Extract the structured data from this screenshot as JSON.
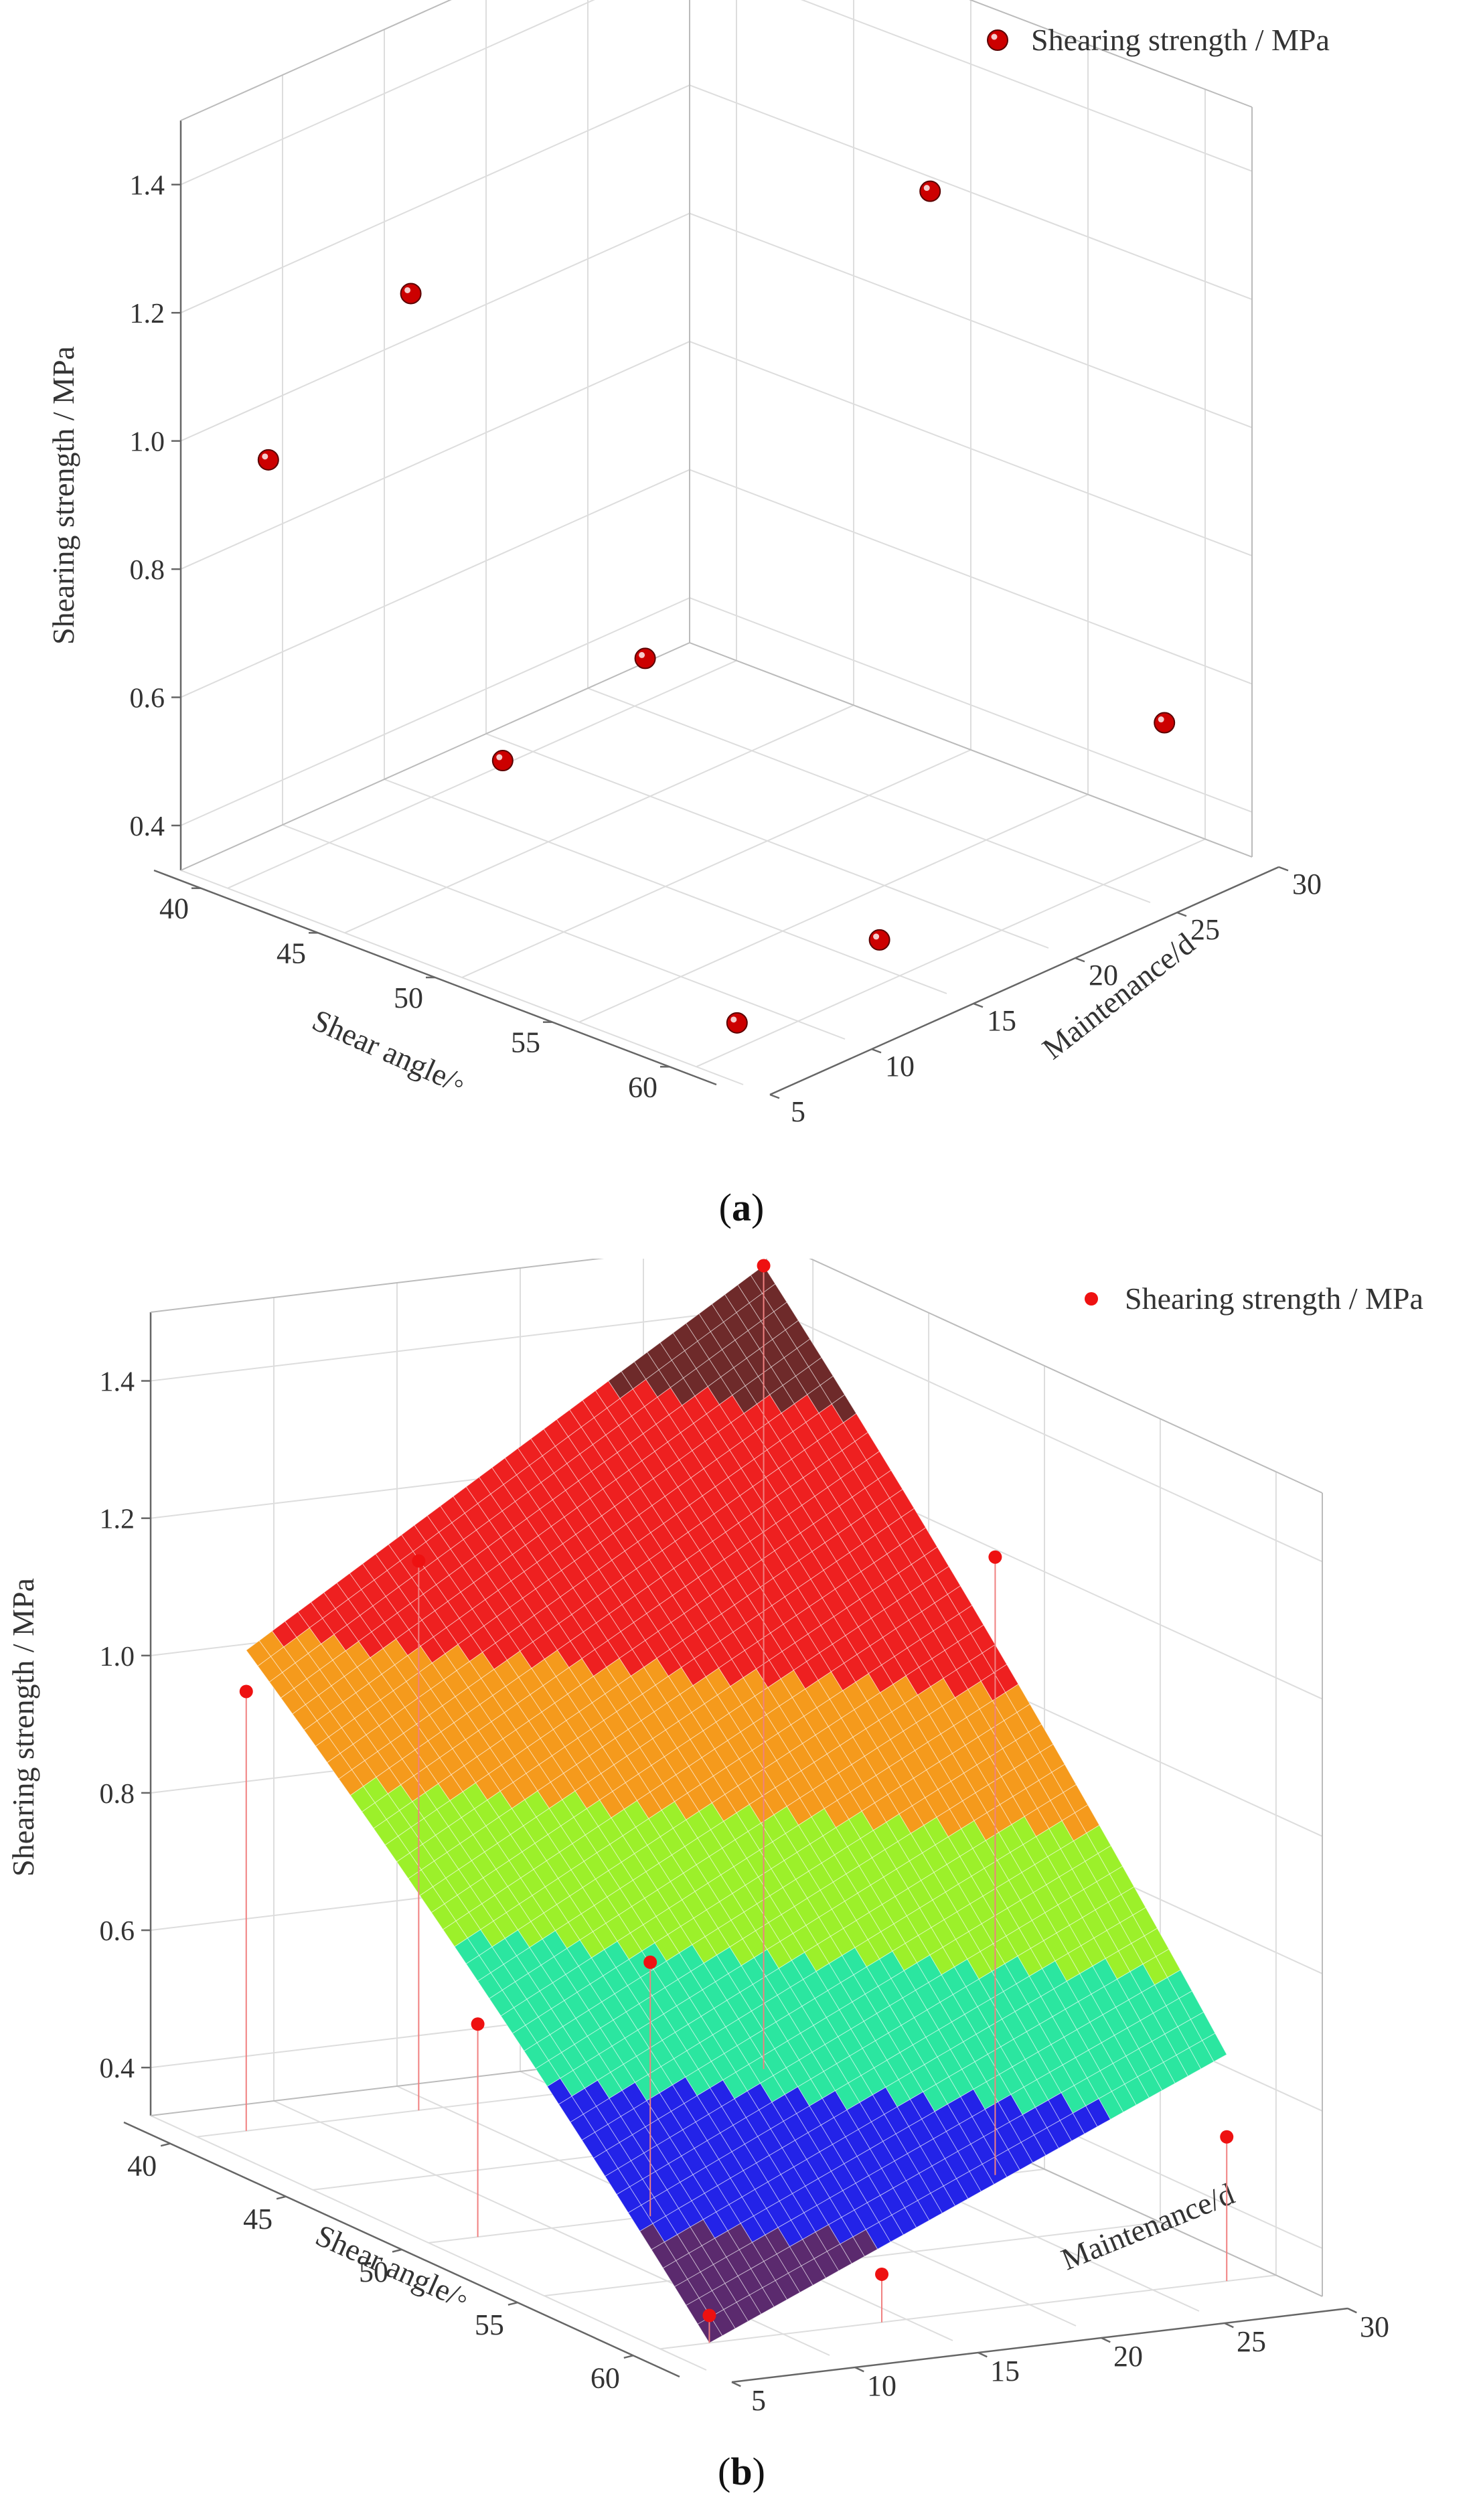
{
  "chart_data": [
    {
      "type": "scatter",
      "panel": "a",
      "caption_letter": "a",
      "zlabel": "Shearing strength / MPa",
      "xlabel": "Shear angle/◦",
      "ylabel": "Maintenance/d",
      "legend": {
        "label": "Shearing strength / MPa",
        "placement": "top-right"
      },
      "xlim": [
        38,
        62
      ],
      "ylim": [
        5,
        30
      ],
      "zlim": [
        0.33,
        1.5
      ],
      "xticks": [
        "40",
        "45",
        "50",
        "55",
        "60"
      ],
      "yticks": [
        "5",
        "10",
        "15",
        "20",
        "25",
        "30"
      ],
      "zticks": [
        "0.4",
        "0.6",
        "0.8",
        "1.0",
        "1.2",
        "1.4"
      ],
      "points": [
        {
          "x": 40,
          "y": 7,
          "z": 0.97
        },
        {
          "x": 40,
          "y": 14,
          "z": 1.13
        },
        {
          "x": 50,
          "y": 7,
          "z": 0.64
        },
        {
          "x": 40,
          "y": 28,
          "z": 1.5
        },
        {
          "x": 50,
          "y": 14,
          "z": 0.7
        },
        {
          "x": 50,
          "y": 28,
          "z": 1.23
        },
        {
          "x": 60,
          "y": 7,
          "z": 0.37
        },
        {
          "x": 60,
          "y": 14,
          "z": 0.4
        },
        {
          "x": 60,
          "y": 28,
          "z": 0.54
        }
      ],
      "point_color": "#cc0000"
    },
    {
      "type": "surface",
      "panel": "b",
      "caption_letter": "b",
      "zlabel": "Shearing strength / MPa",
      "xlabel": "Shear angle/◦",
      "ylabel": "Maintenance/d",
      "legend": {
        "label": "Shearing strength / MPa",
        "placement": "top-right"
      },
      "xlim": [
        38,
        62
      ],
      "ylim": [
        5,
        30
      ],
      "zlim": [
        0.33,
        1.5
      ],
      "xticks": [
        "40",
        "45",
        "50",
        "55",
        "60"
      ],
      "yticks": [
        "5",
        "10",
        "15",
        "20",
        "25",
        "30"
      ],
      "zticks": [
        "0.4",
        "0.6",
        "0.8",
        "1.0",
        "1.2",
        "1.4"
      ],
      "surface": {
        "x_range": [
          40,
          60
        ],
        "y_range": [
          7,
          28
        ],
        "corner_values": {
          "x40_y7": 1.03,
          "x60_y7": 0.33,
          "x40_y28": 1.5,
          "x60_y28": 0.66
        },
        "color_levels": [
          {
            "from": 0.3,
            "to": 0.45,
            "color": "#5b2a6e"
          },
          {
            "from": 0.45,
            "to": 0.6,
            "color": "#2323e8"
          },
          {
            "from": 0.6,
            "to": 0.75,
            "color": "#2be6a0"
          },
          {
            "from": 0.75,
            "to": 0.9,
            "color": "#9cf02a"
          },
          {
            "from": 0.9,
            "to": 1.05,
            "color": "#f59a1c"
          },
          {
            "from": 1.05,
            "to": 1.35,
            "color": "#ee2020"
          },
          {
            "from": 1.35,
            "to": 1.6,
            "color": "#6e2a2a"
          }
        ]
      },
      "points": [
        {
          "x": 40,
          "y": 7,
          "z": 0.97
        },
        {
          "x": 40,
          "y": 14,
          "z": 1.13
        },
        {
          "x": 50,
          "y": 7,
          "z": 0.64
        },
        {
          "x": 40,
          "y": 28,
          "z": 1.5
        },
        {
          "x": 50,
          "y": 14,
          "z": 0.7
        },
        {
          "x": 50,
          "y": 28,
          "z": 1.23
        },
        {
          "x": 60,
          "y": 7,
          "z": 0.37
        },
        {
          "x": 60,
          "y": 14,
          "z": 0.4
        },
        {
          "x": 60,
          "y": 28,
          "z": 0.54
        }
      ],
      "point_color": "#ee1111",
      "drop_line_color": "#f08080"
    }
  ]
}
